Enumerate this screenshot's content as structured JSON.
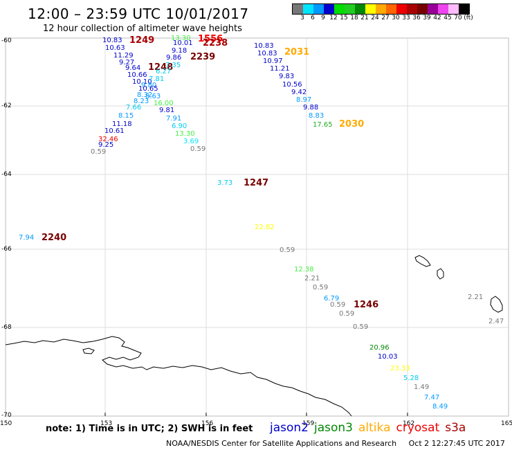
{
  "header": {
    "title": "12:00 – 23:59 UTC 10/01/2017",
    "subtitle": "12 hour collection of altimeter wave heights"
  },
  "legend": {
    "colors": [
      "#777777",
      "#00e5ff",
      "#0099ff",
      "#0000cc",
      "#00dd00",
      "#22cc22",
      "#008800",
      "#ffff00",
      "#ffaa00",
      "#ff6600",
      "#ee0000",
      "#aa0000",
      "#770000",
      "#990099",
      "#ee44ee",
      "#ffbbff",
      "#000000"
    ],
    "labels": [
      "3",
      "6",
      "9",
      "12",
      "15",
      "18",
      "21",
      "24",
      "27",
      "30",
      "33",
      "36",
      "39",
      "42",
      "45",
      "70",
      "(ft)"
    ]
  },
  "map": {
    "lat_labels": [
      "-60",
      "-62",
      "-64",
      "-66",
      "-68",
      "-70"
    ],
    "lon_labels": [
      "150",
      "153",
      "156",
      "159",
      "162",
      "165"
    ],
    "observations": [
      {
        "t": "10.83",
        "c": "#0000cc"
      },
      {
        "t": "10.63",
        "c": "#0000cc"
      },
      {
        "t": "11.29",
        "c": "#0000cc"
      },
      {
        "t": "9.27",
        "c": "#0000cc"
      },
      {
        "t": "9.64",
        "c": "#0000cc"
      },
      {
        "t": "10.66",
        "c": "#0000cc"
      },
      {
        "t": "10.10",
        "c": "#0000cc"
      },
      {
        "t": "9.80",
        "c": "#0099ff"
      },
      {
        "t": "10.65",
        "c": "#0000cc"
      },
      {
        "t": "8.32",
        "c": "#0099ff"
      },
      {
        "t": "8.23",
        "c": "#0099ff"
      },
      {
        "t": "7.66",
        "c": "#00ccee"
      },
      {
        "t": "8.15",
        "c": "#0099ff"
      },
      {
        "t": "11.18",
        "c": "#0000cc"
      },
      {
        "t": "10.61",
        "c": "#0000cc"
      },
      {
        "t": "32.46",
        "c": "#ee0000"
      },
      {
        "t": "9.25",
        "c": "#0000cc"
      },
      {
        "t": "0.59",
        "c": "#777777"
      },
      {
        "t": "1249",
        "c": "#aa0000"
      },
      {
        "t": "1248",
        "c": "#770000"
      },
      {
        "t": "13.30",
        "c": "#44ee44"
      },
      {
        "t": "10.01",
        "c": "#0000cc"
      },
      {
        "t": "9.18",
        "c": "#0000cc"
      },
      {
        "t": "9.86",
        "c": "#0000cc"
      },
      {
        "t": "7.35",
        "c": "#00ccee"
      },
      {
        "t": "6.27",
        "c": "#00ccee"
      },
      {
        "t": "7.81",
        "c": "#00ccee"
      },
      {
        "t": "8.63",
        "c": "#0099ff"
      },
      {
        "t": "16.00",
        "c": "#44ee44"
      },
      {
        "t": "9.81",
        "c": "#0000cc"
      },
      {
        "t": "7.91",
        "c": "#0099ff"
      },
      {
        "t": "6.90",
        "c": "#00ccee"
      },
      {
        "t": "13.30",
        "c": "#44ee44"
      },
      {
        "t": "3.69",
        "c": "#00e5ff"
      },
      {
        "t": "0.59",
        "c": "#777777"
      },
      {
        "t": "1556",
        "c": "#ee0000"
      },
      {
        "t": "2238",
        "c": "#aa0000"
      },
      {
        "t": "2239",
        "c": "#770000"
      },
      {
        "t": "10.83",
        "c": "#0000cc"
      },
      {
        "t": "10.83",
        "c": "#0000cc"
      },
      {
        "t": "10.97",
        "c": "#0000cc"
      },
      {
        "t": "11.21",
        "c": "#0000cc"
      },
      {
        "t": "9.83",
        "c": "#0000cc"
      },
      {
        "t": "10.56",
        "c": "#0000cc"
      },
      {
        "t": "9.42",
        "c": "#0000cc"
      },
      {
        "t": "8.97",
        "c": "#0099ff"
      },
      {
        "t": "9.88",
        "c": "#0000cc"
      },
      {
        "t": "8.83",
        "c": "#0099ff"
      },
      {
        "t": "17.65",
        "c": "#22aa22"
      },
      {
        "t": "2031",
        "c": "#ffaa00"
      },
      {
        "t": "2030",
        "c": "#ffaa00"
      },
      {
        "t": "3.73",
        "c": "#00ccee"
      },
      {
        "t": "1247",
        "c": "#770000"
      },
      {
        "t": "22.82",
        "c": "#ffff00"
      },
      {
        "t": "7.94",
        "c": "#0099ff"
      },
      {
        "t": "2240",
        "c": "#770000"
      },
      {
        "t": "0.59",
        "c": "#777777"
      },
      {
        "t": "12.38",
        "c": "#44ee44"
      },
      {
        "t": "2.21",
        "c": "#777777"
      },
      {
        "t": "0.59",
        "c": "#777777"
      },
      {
        "t": "6.79",
        "c": "#0099ff"
      },
      {
        "t": "0.59",
        "c": "#777777"
      },
      {
        "t": "0.59",
        "c": "#777777"
      },
      {
        "t": "0.59",
        "c": "#777777"
      },
      {
        "t": "1246",
        "c": "#770000"
      },
      {
        "t": "20.96",
        "c": "#008800"
      },
      {
        "t": "10.03",
        "c": "#0000cc"
      },
      {
        "t": "23.33",
        "c": "#ffff00"
      },
      {
        "t": "5.28",
        "c": "#00ccee"
      },
      {
        "t": "1.49",
        "c": "#777777"
      },
      {
        "t": "7.47",
        "c": "#0099ff"
      },
      {
        "t": "8.49",
        "c": "#0099ff"
      },
      {
        "t": "2.21",
        "c": "#777777"
      },
      {
        "t": "2.47",
        "c": "#777777"
      }
    ]
  },
  "footer": {
    "note": "note:  1) Time is in UTC;  2) SWH is in feet",
    "satellites": [
      {
        "name": "jason2",
        "color": "#0000cc"
      },
      {
        "name": "jason3",
        "color": "#008800"
      },
      {
        "name": "altika",
        "color": "#ffaa00"
      },
      {
        "name": "cryosat",
        "color": "#ee0000"
      },
      {
        "name": "s3a",
        "color": "#aa0000"
      }
    ],
    "credit": "NOAA/NESDIS Center for Satellite Applications and Research",
    "timestamp": "Oct  2 12:27:45 UTC 2017"
  }
}
